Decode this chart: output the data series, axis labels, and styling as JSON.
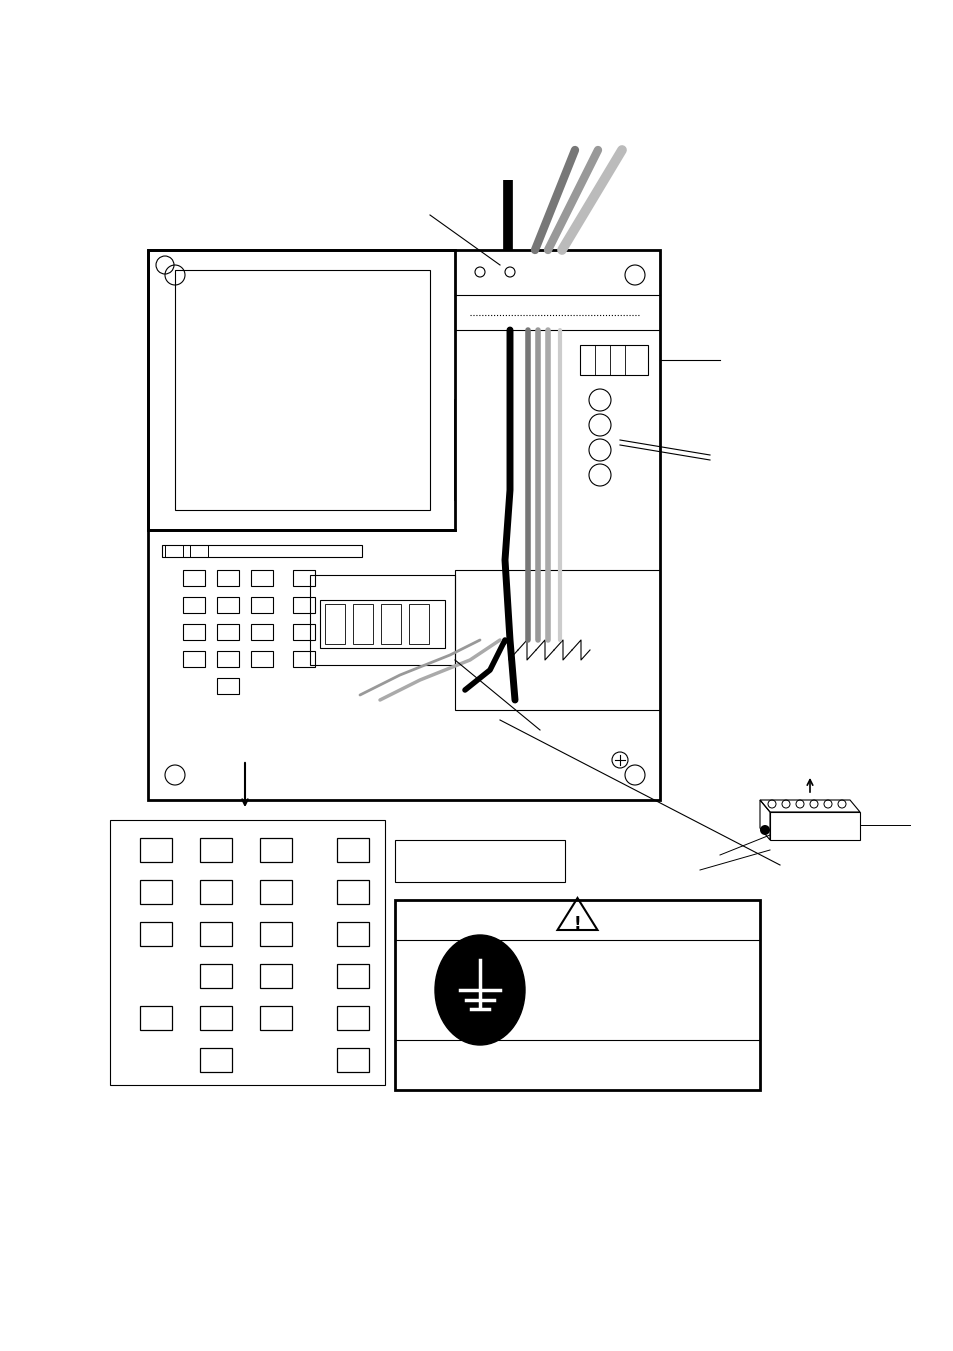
{
  "bg_color": "#ffffff",
  "lc": "#000000",
  "gray1": "#555555",
  "gray2": "#888888",
  "gray3": "#aaaaaa",
  "gray4": "#cccccc"
}
